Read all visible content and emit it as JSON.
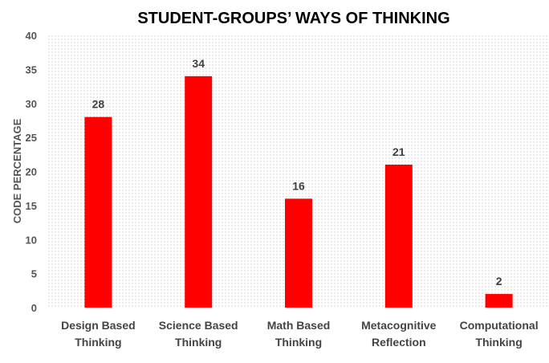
{
  "chart_data": {
    "type": "bar",
    "title": "STUDENT-GROUPS’ WAYS OF THINKING",
    "xlabel": "",
    "ylabel": "CODE PERCENTAGE",
    "categories": [
      [
        "Design Based",
        "Thinking"
      ],
      [
        "Science Based",
        "Thinking"
      ],
      [
        "Math Based",
        "Thinking"
      ],
      [
        "Metacognitive",
        "Reflection"
      ],
      [
        "Computational",
        "Thinking"
      ]
    ],
    "values": [
      28,
      34,
      16,
      21,
      2
    ],
    "data_labels": [
      "28",
      "34",
      "16",
      "21",
      "2"
    ],
    "ylim": [
      0,
      40
    ],
    "yticks": [
      "0",
      "5",
      "10",
      "15",
      "20",
      "25",
      "30",
      "35",
      "40"
    ],
    "grid": false,
    "plot_background": "dotted",
    "bar_color": "#ff0000",
    "dot_color": "#9a9a9a"
  }
}
